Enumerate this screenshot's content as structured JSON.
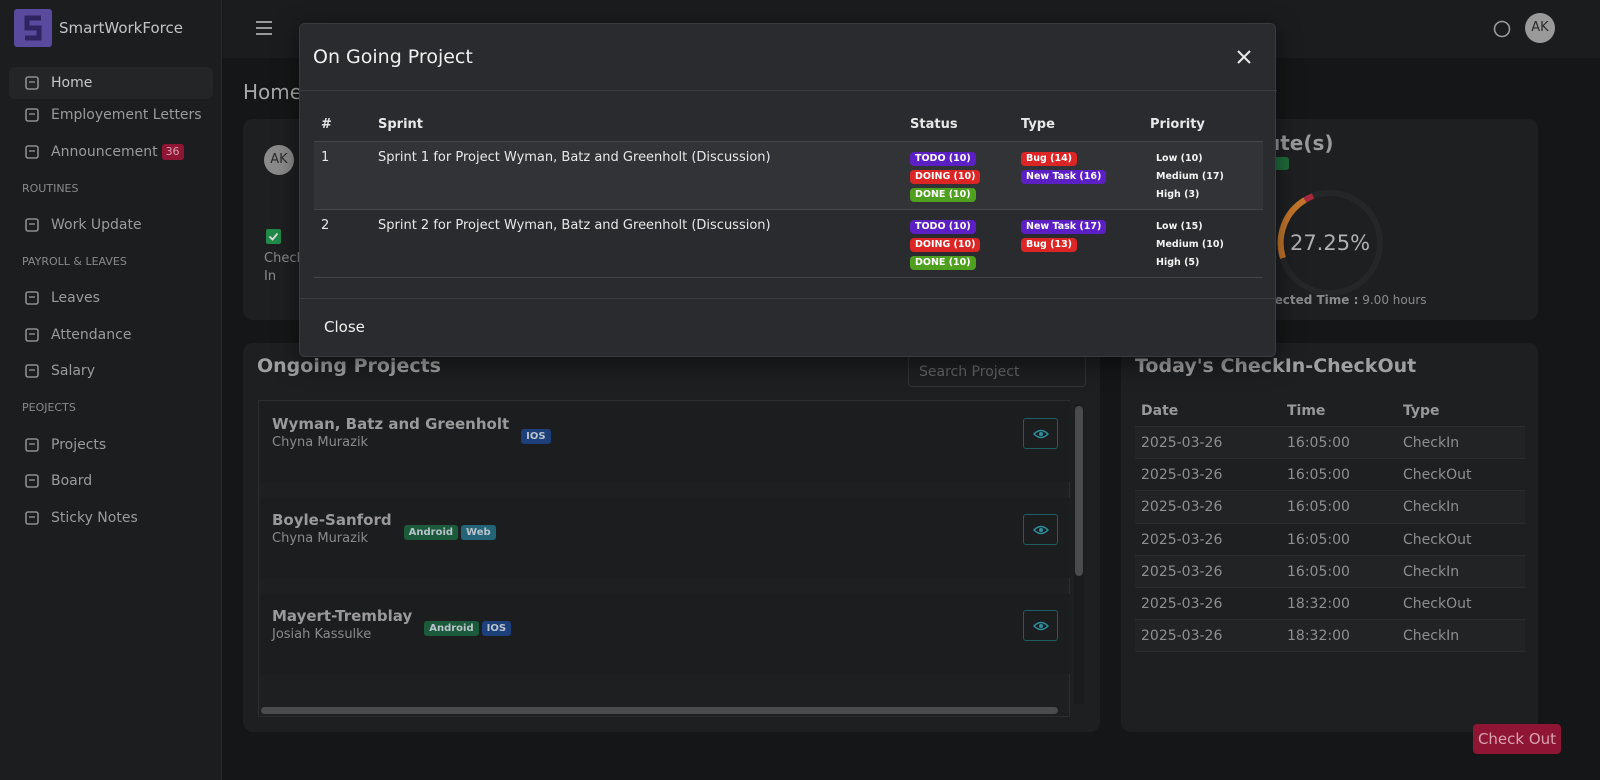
{
  "sidebar": {
    "brand": "SmartWorkForce",
    "groups": [
      {
        "items": [
          {
            "label": "Home"
          },
          {
            "label": "Employement Letters"
          },
          {
            "label": "Announcement",
            "badge": 36
          }
        ]
      },
      {
        "heading": "ROUTINES",
        "items": [
          {
            "label": "Work Update"
          }
        ]
      },
      {
        "heading": "PAYROLL & LEAVES",
        "items": [
          {
            "label": "Leaves"
          },
          {
            "label": "Attendance"
          },
          {
            "label": "Salary"
          }
        ]
      },
      {
        "heading": "PEOJECTS",
        "items": [
          {
            "label": "Projects"
          },
          {
            "label": "Board"
          },
          {
            "label": "Sticky Notes"
          }
        ]
      }
    ]
  },
  "topbar": {
    "avatar": "AK"
  },
  "page": {
    "title": "Home"
  },
  "summary": {
    "avatar": "AK",
    "check_label": "Check In",
    "work_title_fragment": "ute(s)",
    "gauge_value": "27.25%",
    "expected_label": "pected Time :",
    "expected_value": "9.00 hours"
  },
  "projects": {
    "title": "Ongoing Projects",
    "search_placeholder": "Search Project",
    "items": [
      {
        "name": "Wyman, Batz and Greenholt",
        "person": "Chyna Murazik",
        "tags": [
          {
            "text": "IOS",
            "color": "#1d3f7a"
          }
        ]
      },
      {
        "name": "Boyle-Sanford",
        "person": "Chyna Murazik",
        "tags": [
          {
            "text": "Android",
            "color": "#1c5a3c"
          },
          {
            "text": "Web",
            "color": "#246478"
          }
        ]
      },
      {
        "name": "Mayert-Tremblay",
        "person": "Josiah Kassulke",
        "tags": [
          {
            "text": "Android",
            "color": "#1c5a3c"
          },
          {
            "text": "IOS",
            "color": "#1d3f7a"
          }
        ]
      }
    ]
  },
  "checkins": {
    "title": "Today's CheckIn-CheckOut",
    "columns": [
      "Date",
      "Time",
      "Type"
    ],
    "rows": [
      [
        "2025-03-26",
        "16:05:00",
        "CheckIn"
      ],
      [
        "2025-03-26",
        "16:05:00",
        "CheckOut"
      ],
      [
        "2025-03-26",
        "16:05:00",
        "CheckIn"
      ],
      [
        "2025-03-26",
        "16:05:00",
        "CheckOut"
      ],
      [
        "2025-03-26",
        "16:05:00",
        "CheckIn"
      ],
      [
        "2025-03-26",
        "18:32:00",
        "CheckOut"
      ],
      [
        "2025-03-26",
        "18:32:00",
        "CheckIn"
      ]
    ]
  },
  "checkout_button": "Check Out",
  "modal": {
    "title": "On Going Project",
    "columns": [
      "#",
      "Sprint",
      "Status",
      "Type",
      "Priority"
    ],
    "rows": [
      {
        "index": "1",
        "sprint": "Sprint 1 for Project Wyman, Batz and Greenholt (Discussion)",
        "status": [
          {
            "text": "TODO (10)",
            "color": "#5b1fc4"
          },
          {
            "text": "DOING (10)",
            "color": "#dc2626"
          },
          {
            "text": "DONE (10)",
            "color": "#4ea01e"
          }
        ],
        "type": [
          {
            "text": "Bug (14)",
            "color": "#dc2626"
          },
          {
            "text": "New Task (16)",
            "color": "#5b1fc4"
          }
        ],
        "priority": [
          "Low (10)",
          "Medium (17)",
          "High (3)"
        ]
      },
      {
        "index": "2",
        "sprint": "Sprint 2 for Project Wyman, Batz and Greenholt (Discussion)",
        "status": [
          {
            "text": "TODO (10)",
            "color": "#5b1fc4"
          },
          {
            "text": "DOING (10)",
            "color": "#dc2626"
          },
          {
            "text": "DONE (10)",
            "color": "#4ea01e"
          }
        ],
        "type": [
          {
            "text": "New Task (17)",
            "color": "#5b1fc4"
          },
          {
            "text": "Bug (13)",
            "color": "#dc2626"
          }
        ],
        "priority": [
          "Low (15)",
          "Medium (10)",
          "High (5)"
        ]
      }
    ],
    "close_button": "Close"
  }
}
